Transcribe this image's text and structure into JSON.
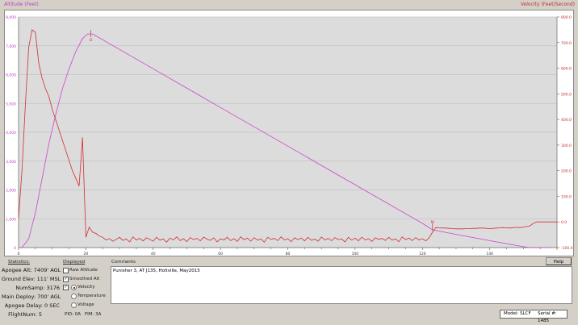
{
  "chart_data": {
    "type": "line",
    "left_axis": {
      "label": "Altitude (Feet)",
      "range": [
        0,
        8000
      ],
      "ticks": [
        "0",
        "1,000",
        "2,000",
        "3,000",
        "4,000",
        "5,000",
        "6,000",
        "7,000",
        "8,000"
      ],
      "color": "#c040c0"
    },
    "right_axis": {
      "label": "Velocity (Feet/Second)",
      "range": [
        -100,
        800
      ],
      "ticks": [
        "-100.0",
        "0.0",
        "100.0",
        "200.0",
        "300.0",
        "400.0",
        "500.0",
        "600.0",
        "700.0",
        "800.0"
      ],
      "color": "#c03030"
    },
    "x_axis": {
      "range": [
        0,
        160
      ],
      "ticks": [
        "0",
        "20",
        "40",
        "60",
        "80",
        "100",
        "120",
        "140"
      ]
    },
    "grid": true,
    "series": [
      {
        "axis": "left",
        "color": "#cc44cc",
        "x": [
          0,
          1,
          3,
          5,
          7,
          9,
          11,
          13,
          15,
          17,
          19,
          20.5,
          22,
          40,
          60,
          80,
          100,
          120,
          123,
          130,
          140,
          150,
          152,
          158
        ],
        "y": [
          0,
          0,
          300,
          1200,
          2400,
          3600,
          4600,
          5500,
          6200,
          6800,
          7250,
          7409,
          7409,
          6200,
          4860,
          3520,
          2180,
          840,
          615,
          460,
          240,
          30,
          0,
          0
        ]
      },
      {
        "axis": "right",
        "color": "#d03030",
        "x_start": 0,
        "x_step": 1,
        "y": [
          15,
          200,
          450,
          680,
          750,
          740,
          620,
          560,
          520,
          490,
          440,
          400,
          360,
          320,
          280,
          240,
          200,
          170,
          140,
          330,
          -60,
          -20,
          -40,
          -45,
          -55,
          -60,
          -70,
          -65,
          -75,
          -68,
          -60,
          -72,
          -66,
          -78,
          -58,
          -70,
          -64,
          -74,
          -62,
          -68,
          -75,
          -60,
          -71,
          -66,
          -79,
          -63,
          -70,
          -58,
          -73,
          -65,
          -77,
          -61,
          -69,
          -64,
          -74,
          -59,
          -67,
          -72,
          -62,
          -78,
          -66,
          -70,
          -60,
          -73,
          -65,
          -76,
          -58,
          -69,
          -63,
          -75,
          -61,
          -71,
          -66,
          -79,
          -60,
          -68,
          -64,
          -73,
          -58,
          -70,
          -65,
          -77,
          -62,
          -69,
          -63,
          -74,
          -60,
          -72,
          -67,
          -75,
          -59,
          -70,
          -64,
          -73,
          -61,
          -69,
          -66,
          -78,
          -60,
          -71,
          -63,
          -74,
          -59,
          -70,
          -65,
          -76,
          -62,
          -68,
          -64,
          -72,
          -60,
          -71,
          -66,
          -77,
          -58,
          -69,
          -63,
          -73,
          -61,
          -70,
          -65,
          -74,
          -62,
          -40,
          -22,
          -23,
          -24,
          -24,
          -25,
          -26,
          -27,
          -27,
          -27,
          -26,
          -26,
          -25,
          -25,
          -24,
          -24,
          -25,
          -26,
          -25,
          -24,
          -23,
          -22,
          -23,
          -24,
          -22,
          -21,
          -22,
          -20,
          -18,
          -15,
          -5,
          0,
          0,
          0,
          0,
          0,
          0,
          0
        ]
      }
    ],
    "markers": [
      {
        "label": "D",
        "x": 21.5,
        "y_alt": 7409
      },
      {
        "label": "M",
        "x": 123,
        "y_alt": 700
      }
    ]
  },
  "statistics": {
    "title": "Statistics:",
    "items": [
      "Apogee Alt: 7409' AGL",
      "Ground Elev: 111' MSL",
      "NumSamp: 3176",
      "Main Deploy: 700' AGL",
      "Apogee Delay: 0 SEC",
      "FlightNum: 5"
    ]
  },
  "displayed": {
    "title": "Displayed",
    "raw_altitude": "Raw Altitude",
    "smoothed_alt": "Smoothed Alt",
    "velocity": "Velocity",
    "temperature": "Temperature",
    "voltage": "Voltage",
    "raw_checked": false,
    "smoothed_checked": true,
    "third_checked": true,
    "selected": "Velocity",
    "pid": "PID: 0A",
    "fim": "FIM: 3A"
  },
  "comments": {
    "title": "Comments",
    "text": "Punisher 3, AT J135, Holtville, May2015"
  },
  "help_label": "Help",
  "model": "Model: SLCF",
  "serial": "Serial #: 1485"
}
